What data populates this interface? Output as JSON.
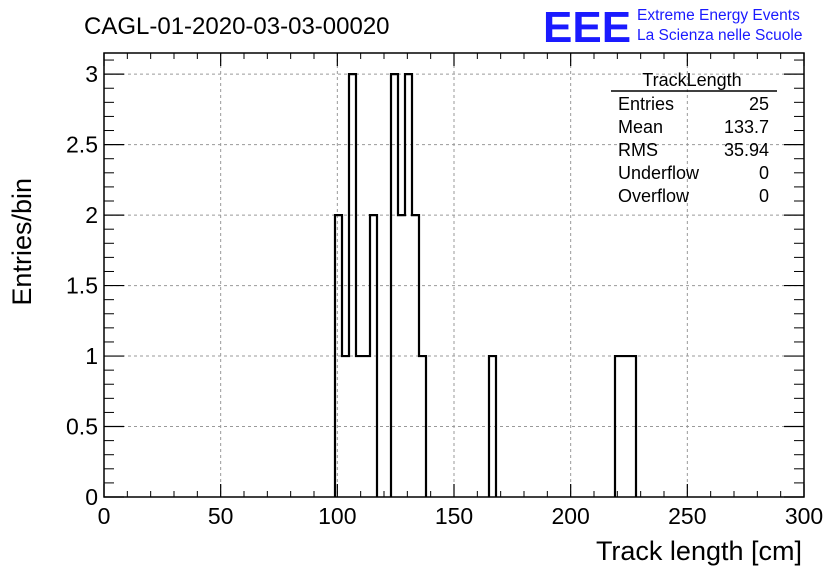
{
  "header": {
    "run_title": "CAGL-01-2020-03-03-00020",
    "logo_text": "EEE",
    "logo_line1": "Extreme Energy Events",
    "logo_line2": "La Scienza nelle Scuole"
  },
  "colors": {
    "logo": "#1a1aff",
    "line": "#000000",
    "grid": "#9a9a9a",
    "background": "#ffffff"
  },
  "stats": {
    "title": "TrackLength",
    "rows": [
      {
        "label": "Entries",
        "value": "25"
      },
      {
        "label": "Mean",
        "value": "133.7"
      },
      {
        "label": "RMS",
        "value": "35.94"
      },
      {
        "label": "Underflow",
        "value": "0"
      },
      {
        "label": "Overflow",
        "value": "0"
      }
    ]
  },
  "chart_data": {
    "type": "bar",
    "style": "step-histogram",
    "xlabel": "Track length [cm]",
    "ylabel": "Entries/bin",
    "xlim": [
      0,
      300
    ],
    "ylim": [
      0,
      3.15
    ],
    "grid": true,
    "x_ticks": [
      "0",
      "50",
      "100",
      "150",
      "200",
      "250",
      "300"
    ],
    "y_ticks": [
      "0",
      "0.5",
      "1",
      "1.5",
      "2",
      "2.5",
      "3"
    ],
    "bin_width": 3,
    "bins": [
      {
        "x": 99,
        "count": 2
      },
      {
        "x": 102,
        "count": 1
      },
      {
        "x": 105,
        "count": 3
      },
      {
        "x": 108,
        "count": 1
      },
      {
        "x": 111,
        "count": 1
      },
      {
        "x": 114,
        "count": 2
      },
      {
        "x": 123,
        "count": 3
      },
      {
        "x": 126,
        "count": 2
      },
      {
        "x": 129,
        "count": 3
      },
      {
        "x": 132,
        "count": 2
      },
      {
        "x": 135,
        "count": 1
      },
      {
        "x": 165,
        "count": 1
      },
      {
        "x": 219,
        "count": 1
      },
      {
        "x": 222,
        "count": 1
      },
      {
        "x": 225,
        "count": 1
      }
    ]
  }
}
